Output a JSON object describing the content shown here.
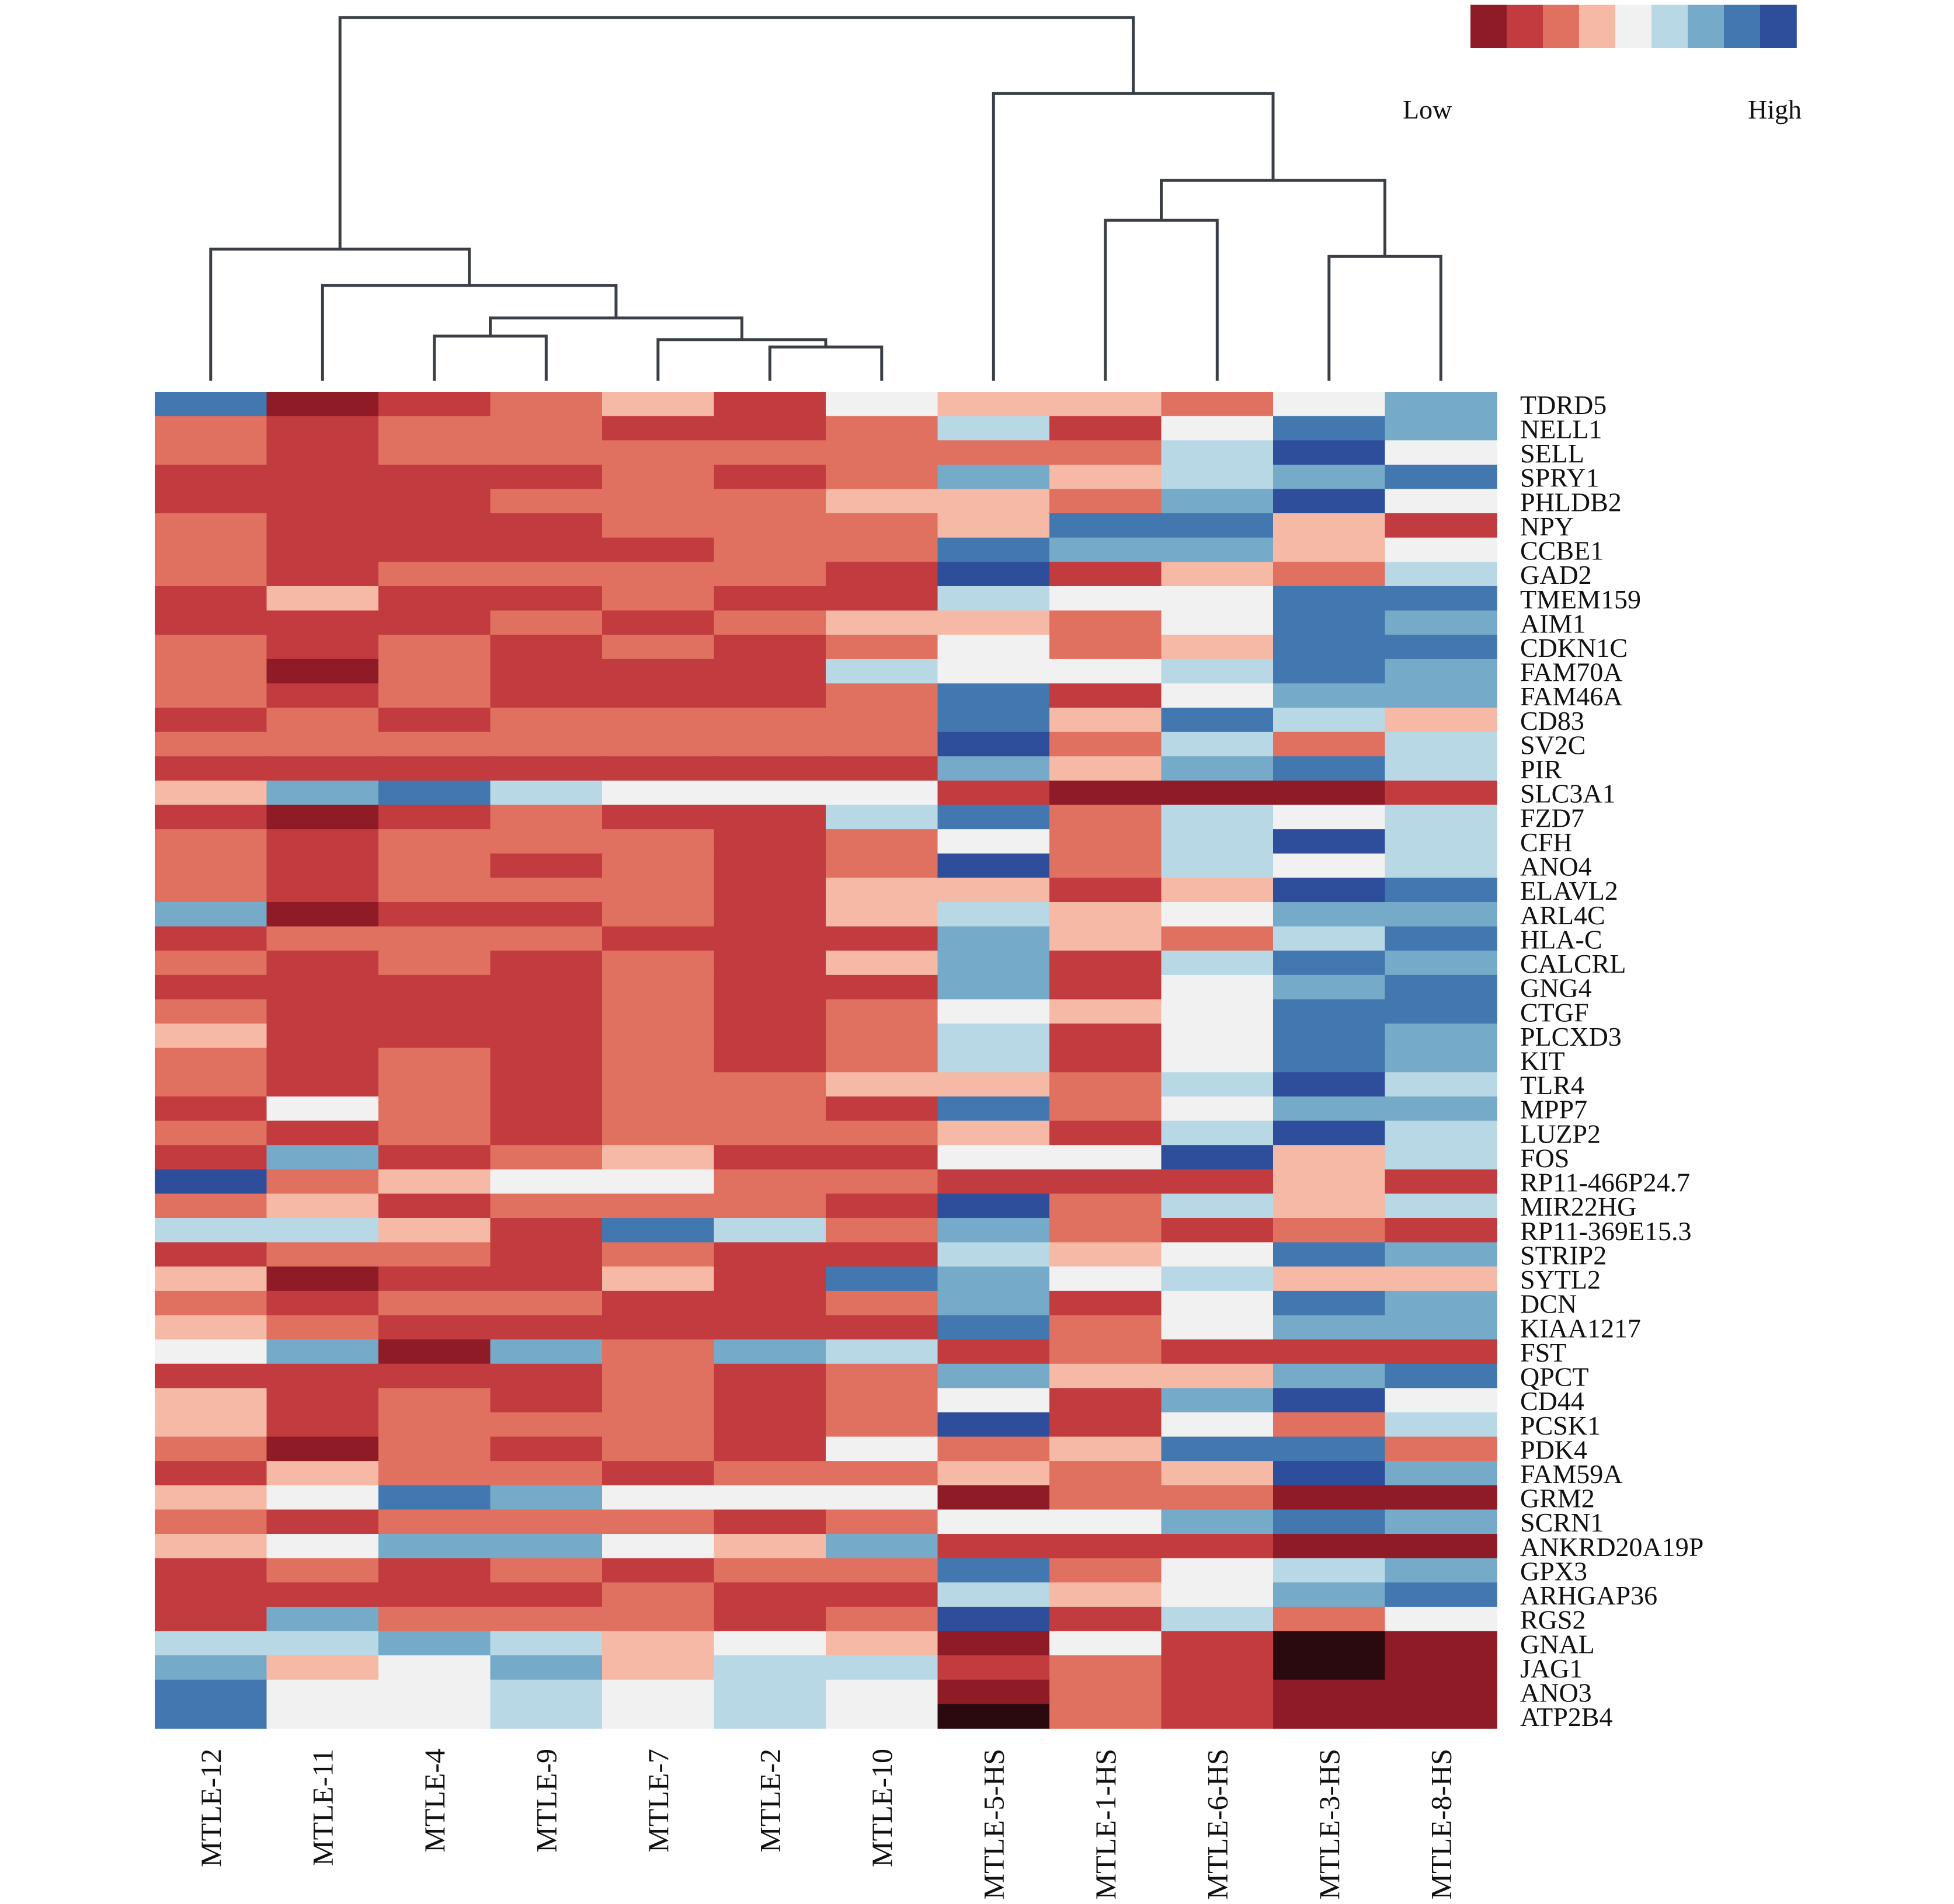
{
  "chart_data": {
    "type": "heatmap",
    "columns": [
      "MTLE-12",
      "MTLE-11",
      "MTLE-4",
      "MTLE-9",
      "MTLE-7",
      "MTLE-2",
      "MTLE-10",
      "MTLE-5-HS",
      "MTLE-1-HS",
      "MTLE-6-HS",
      "MTLE-3-HS",
      "MTLE-8-HS"
    ],
    "rows": [
      "TDRD5",
      "NELL1",
      "SELL",
      "SPRY1",
      "PHLDB2",
      "NPY",
      "CCBE1",
      "GAD2",
      "TMEM159",
      "AIM1",
      "CDKN1C",
      "FAM70A",
      "FAM46A",
      "CD83",
      "SV2C",
      "PIR",
      "SLC3A1",
      "FZD7",
      "CFH",
      "ANO4",
      "ELAVL2",
      "ARL4C",
      "HLA-C",
      "CALCRL",
      "GNG4",
      "CTGF",
      "PLCXD3",
      "KIT",
      "TLR4",
      "MPP7",
      "LUZP2",
      "FOS",
      "RP11-466P24.7",
      "MIR22HG",
      "RP11-369E15.3",
      "STRIP2",
      "SYTL2",
      "DCN",
      "KIAA1217",
      "FST",
      "QPCT",
      "CD44",
      "PCSK1",
      "PDK4",
      "FAM59A",
      "GRM2",
      "SCRN1",
      "ANKRD20A19P",
      "GPX3",
      "ARHGAP36",
      "RGS2",
      "GNAL",
      "JAG1",
      "ANO3",
      "ATP2B4"
    ],
    "values": [
      [
        8,
        1,
        2,
        3,
        4,
        2,
        5,
        4,
        4,
        3,
        5,
        7
      ],
      [
        3,
        2,
        3,
        3,
        2,
        2,
        3,
        6,
        2,
        5,
        8,
        7
      ],
      [
        3,
        2,
        3,
        3,
        3,
        3,
        3,
        3,
        3,
        6,
        9,
        5
      ],
      [
        2,
        2,
        2,
        2,
        3,
        2,
        3,
        7,
        4,
        6,
        7,
        8
      ],
      [
        2,
        2,
        2,
        3,
        3,
        3,
        4,
        4,
        3,
        7,
        9,
        5
      ],
      [
        3,
        2,
        2,
        2,
        3,
        3,
        3,
        4,
        8,
        8,
        4,
        2
      ],
      [
        3,
        2,
        2,
        2,
        2,
        3,
        3,
        8,
        7,
        7,
        4,
        5
      ],
      [
        3,
        2,
        3,
        3,
        3,
        3,
        2,
        9,
        2,
        4,
        3,
        6
      ],
      [
        2,
        4,
        2,
        2,
        3,
        2,
        2,
        6,
        5,
        5,
        8,
        8
      ],
      [
        2,
        2,
        2,
        3,
        2,
        3,
        4,
        4,
        3,
        5,
        8,
        7
      ],
      [
        3,
        2,
        3,
        2,
        3,
        2,
        3,
        5,
        3,
        4,
        8,
        8
      ],
      [
        3,
        1,
        3,
        2,
        2,
        2,
        6,
        5,
        5,
        6,
        8,
        7
      ],
      [
        3,
        2,
        3,
        2,
        2,
        2,
        3,
        8,
        2,
        5,
        7,
        7
      ],
      [
        2,
        3,
        2,
        3,
        3,
        3,
        3,
        8,
        4,
        8,
        6,
        4
      ],
      [
        3,
        3,
        3,
        3,
        3,
        3,
        3,
        9,
        3,
        6,
        3,
        6
      ],
      [
        2,
        2,
        2,
        2,
        2,
        2,
        2,
        7,
        4,
        7,
        8,
        6
      ],
      [
        4,
        7,
        8,
        6,
        5,
        5,
        5,
        2,
        1,
        1,
        1,
        2
      ],
      [
        2,
        1,
        2,
        3,
        2,
        2,
        6,
        8,
        3,
        6,
        5,
        6
      ],
      [
        3,
        2,
        3,
        3,
        3,
        2,
        3,
        5,
        3,
        6,
        9,
        6
      ],
      [
        3,
        2,
        3,
        2,
        3,
        2,
        3,
        9,
        3,
        6,
        5,
        6
      ],
      [
        3,
        2,
        3,
        3,
        3,
        2,
        4,
        4,
        2,
        4,
        9,
        8
      ],
      [
        7,
        1,
        2,
        2,
        3,
        2,
        4,
        6,
        4,
        5,
        7,
        7
      ],
      [
        2,
        3,
        3,
        3,
        2,
        2,
        2,
        7,
        4,
        3,
        6,
        8
      ],
      [
        3,
        2,
        3,
        2,
        3,
        2,
        4,
        7,
        2,
        6,
        8,
        7
      ],
      [
        2,
        2,
        2,
        2,
        3,
        2,
        2,
        7,
        2,
        5,
        7,
        8
      ],
      [
        3,
        2,
        2,
        2,
        3,
        2,
        3,
        5,
        4,
        5,
        8,
        8
      ],
      [
        4,
        2,
        2,
        2,
        3,
        2,
        3,
        6,
        2,
        5,
        8,
        7
      ],
      [
        3,
        2,
        3,
        2,
        3,
        2,
        3,
        6,
        2,
        5,
        8,
        7
      ],
      [
        3,
        2,
        3,
        2,
        3,
        3,
        4,
        4,
        3,
        6,
        9,
        6
      ],
      [
        2,
        5,
        3,
        2,
        3,
        3,
        2,
        8,
        3,
        5,
        7,
        7
      ],
      [
        3,
        2,
        3,
        2,
        3,
        3,
        3,
        4,
        2,
        6,
        9,
        6
      ],
      [
        2,
        7,
        2,
        3,
        4,
        2,
        2,
        5,
        5,
        9,
        4,
        6
      ],
      [
        9,
        3,
        4,
        5,
        5,
        3,
        3,
        2,
        2,
        2,
        4,
        2
      ],
      [
        3,
        4,
        2,
        3,
        3,
        3,
        2,
        9,
        3,
        6,
        4,
        6
      ],
      [
        6,
        6,
        4,
        2,
        8,
        6,
        3,
        7,
        3,
        2,
        3,
        2
      ],
      [
        2,
        3,
        3,
        2,
        3,
        2,
        2,
        6,
        4,
        5,
        8,
        7
      ],
      [
        4,
        1,
        2,
        2,
        4,
        2,
        8,
        7,
        5,
        6,
        4,
        4
      ],
      [
        3,
        2,
        3,
        3,
        2,
        2,
        3,
        7,
        2,
        5,
        8,
        7
      ],
      [
        4,
        3,
        2,
        2,
        2,
        2,
        2,
        8,
        3,
        5,
        7,
        7
      ],
      [
        5,
        7,
        1,
        7,
        3,
        7,
        6,
        2,
        3,
        2,
        2,
        2
      ],
      [
        2,
        2,
        2,
        2,
        3,
        2,
        3,
        7,
        4,
        4,
        7,
        8
      ],
      [
        4,
        2,
        3,
        2,
        3,
        2,
        3,
        5,
        2,
        7,
        9,
        5
      ],
      [
        4,
        2,
        3,
        3,
        3,
        2,
        3,
        9,
        2,
        5,
        3,
        6
      ],
      [
        3,
        1,
        3,
        2,
        3,
        2,
        5,
        3,
        4,
        8,
        8,
        3
      ],
      [
        2,
        4,
        3,
        3,
        2,
        3,
        3,
        4,
        3,
        4,
        9,
        7
      ],
      [
        4,
        5,
        8,
        7,
        5,
        5,
        5,
        1,
        3,
        3,
        1,
        1
      ],
      [
        3,
        2,
        3,
        3,
        3,
        2,
        3,
        5,
        5,
        7,
        8,
        7
      ],
      [
        4,
        5,
        7,
        7,
        5,
        4,
        7,
        2,
        2,
        2,
        1,
        1
      ],
      [
        2,
        3,
        2,
        3,
        2,
        3,
        3,
        8,
        3,
        5,
        6,
        7
      ],
      [
        2,
        2,
        2,
        2,
        3,
        2,
        2,
        6,
        4,
        5,
        7,
        8
      ],
      [
        2,
        7,
        3,
        3,
        3,
        2,
        3,
        9,
        2,
        6,
        3,
        5
      ],
      [
        6,
        6,
        7,
        6,
        4,
        5,
        4,
        1,
        5,
        2,
        0,
        1
      ],
      [
        7,
        4,
        5,
        7,
        4,
        6,
        6,
        2,
        3,
        2,
        0,
        1
      ],
      [
        8,
        5,
        5,
        6,
        5,
        6,
        5,
        1,
        3,
        2,
        1,
        1
      ],
      [
        8,
        5,
        5,
        6,
        5,
        6,
        5,
        0,
        3,
        2,
        1,
        1
      ]
    ],
    "color_scale": [
      "#2a0a0e",
      "#8e1b26",
      "#c23b3e",
      "#e0705f",
      "#f5b9a6",
      "#f1f1f1",
      "#b9d8e6",
      "#75aac9",
      "#4377af",
      "#2e4d9a",
      "#1c2344"
    ],
    "legend_scale_colors": [
      "#8e1b26",
      "#c23b3e",
      "#e0705f",
      "#f5b9a6",
      "#f1f1f1",
      "#b9d8e6",
      "#75aac9",
      "#4377af",
      "#2e4d9a"
    ],
    "legend": {
      "low_label": "Low",
      "high_label": "High",
      "position": "top-right"
    },
    "dendrogram_leaf_order": [
      "MTLE-12",
      "MTLE-11",
      "MTLE-4",
      "MTLE-9",
      "MTLE-7",
      "MTLE-2",
      "MTLE-10",
      "MTLE-5-HS",
      "MTLE-1-HS",
      "MTLE-6-HS",
      "MTLE-3-HS",
      "MTLE-8-HS"
    ],
    "dendrogram_merges": [
      {
        "left": "MTLE-2",
        "right": "MTLE-10",
        "height": 0.09
      },
      {
        "left": "MTLE-7",
        "right": "MTLE-2+MTLE-10",
        "height": 0.11
      },
      {
        "left": "MTLE-4",
        "right": "MTLE-9",
        "height": 0.12
      },
      {
        "left": "MTLE-4+MTLE-9",
        "right": "MTLE-7+MTLE-2+MTLE-10",
        "height": 0.17
      },
      {
        "left": "MTLE-11",
        "right": "MTLE-4+MTLE-9+MTLE-7+MTLE-2+MTLE-10",
        "height": 0.26
      },
      {
        "left": "MTLE-12",
        "right": "MTLE-11+MTLE-4+MTLE-9+MTLE-7+MTLE-2+MTLE-10",
        "height": 0.36
      },
      {
        "left": "MTLE-3-HS",
        "right": "MTLE-8-HS",
        "height": 0.34
      },
      {
        "left": "MTLE-1-HS",
        "right": "MTLE-6-HS",
        "height": 0.44
      },
      {
        "left": "MTLE-1-HS+MTLE-6-HS",
        "right": "MTLE-3-HS+MTLE-8-HS",
        "height": 0.55
      },
      {
        "left": "MTLE-5-HS",
        "right": "MTLE-1-HS+MTLE-6-HS+MTLE-3-HS+MTLE-8-HS",
        "height": 0.79
      },
      {
        "left": "MTLE-12..MTLE-10",
        "right": "MTLE-5-HS..MTLE-8-HS",
        "height": 1.0
      }
    ]
  }
}
